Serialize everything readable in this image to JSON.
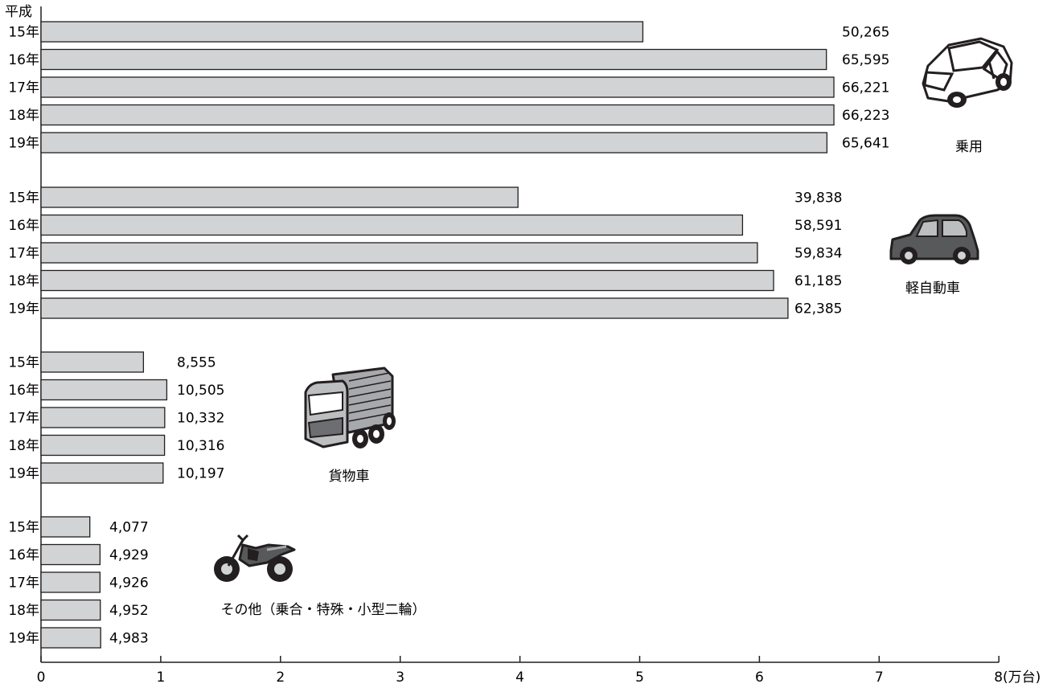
{
  "chart_data": {
    "type": "bar",
    "orientation": "horizontal",
    "era_label": "平成",
    "x_unit_label": "(万台)",
    "xlim": [
      0,
      8
    ],
    "x_ticks": [
      "0",
      "1",
      "2",
      "3",
      "4",
      "5",
      "6",
      "7",
      "8"
    ],
    "bar_color": "#d1d3d4",
    "groups": [
      {
        "name": "乗用",
        "icon": "passenger-car-icon",
        "bars": [
          {
            "year": "15年",
            "value": 50265,
            "label": "50,265"
          },
          {
            "year": "16年",
            "value": 65595,
            "label": "65,595"
          },
          {
            "year": "17年",
            "value": 66221,
            "label": "66,221"
          },
          {
            "year": "18年",
            "value": 66223,
            "label": "66,223"
          },
          {
            "year": "19年",
            "value": 65641,
            "label": "65,641"
          }
        ]
      },
      {
        "name": "軽自動車",
        "icon": "kei-car-icon",
        "bars": [
          {
            "year": "15年",
            "value": 39838,
            "label": "39,838"
          },
          {
            "year": "16年",
            "value": 58591,
            "label": "58,591"
          },
          {
            "year": "17年",
            "value": 59834,
            "label": "59,834"
          },
          {
            "year": "18年",
            "value": 61185,
            "label": "61,185"
          },
          {
            "year": "19年",
            "value": 62385,
            "label": "62,385"
          }
        ]
      },
      {
        "name": "貨物車",
        "icon": "truck-icon",
        "bars": [
          {
            "year": "15年",
            "value": 8555,
            "label": "8,555"
          },
          {
            "year": "16年",
            "value": 10505,
            "label": "10,505"
          },
          {
            "year": "17年",
            "value": 10332,
            "label": "10,332"
          },
          {
            "year": "18年",
            "value": 10316,
            "label": "10,316"
          },
          {
            "year": "19年",
            "value": 10197,
            "label": "10,197"
          }
        ]
      },
      {
        "name": "その他（乗合・特殊・小型二輪）",
        "icon": "motorcycle-icon",
        "bars": [
          {
            "year": "15年",
            "value": 4077,
            "label": "4,077"
          },
          {
            "year": "16年",
            "value": 4929,
            "label": "4,929"
          },
          {
            "year": "17年",
            "value": 4926,
            "label": "4,926"
          },
          {
            "year": "18年",
            "value": 4952,
            "label": "4,952"
          },
          {
            "year": "19年",
            "value": 4983,
            "label": "4,983"
          }
        ]
      }
    ]
  }
}
